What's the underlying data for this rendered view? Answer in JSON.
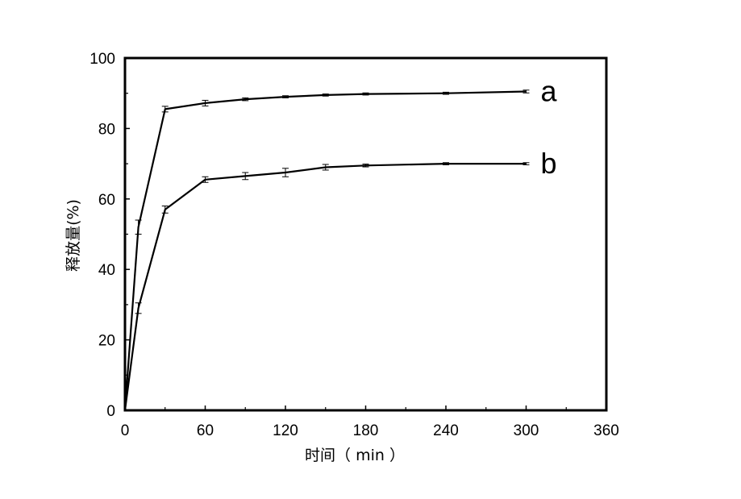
{
  "chart_data": {
    "type": "line",
    "title": "",
    "xlabel": "时间（ min ）",
    "ylabel": "释放量(%)",
    "xlim": [
      0,
      360
    ],
    "ylim": [
      0,
      100
    ],
    "x_ticks": [
      0,
      60,
      120,
      180,
      240,
      300,
      360
    ],
    "y_ticks": [
      0,
      20,
      40,
      60,
      80,
      100
    ],
    "grid": false,
    "legend": "none",
    "series": [
      {
        "name": "a",
        "color": "#000000",
        "points": [
          {
            "x": 0,
            "y": 0,
            "err": 0
          },
          {
            "x": 10,
            "y": 52,
            "err": 2
          },
          {
            "x": 30,
            "y": 85.5,
            "err": 0.8
          },
          {
            "x": 60,
            "y": 87.2,
            "err": 0.8
          },
          {
            "x": 90,
            "y": 88.3,
            "err": 0.4
          },
          {
            "x": 120,
            "y": 89,
            "err": 0.3
          },
          {
            "x": 150,
            "y": 89.5,
            "err": 0.3
          },
          {
            "x": 180,
            "y": 89.8,
            "err": 0.3
          },
          {
            "x": 240,
            "y": 90,
            "err": 0.3
          },
          {
            "x": 300,
            "y": 90.5,
            "err": 0.4
          }
        ]
      },
      {
        "name": "b",
        "color": "#000000",
        "points": [
          {
            "x": 0,
            "y": 0,
            "err": 0
          },
          {
            "x": 10,
            "y": 29,
            "err": 1.5
          },
          {
            "x": 30,
            "y": 57,
            "err": 1
          },
          {
            "x": 60,
            "y": 65.5,
            "err": 0.8
          },
          {
            "x": 90,
            "y": 66.5,
            "err": 1
          },
          {
            "x": 120,
            "y": 67.5,
            "err": 1.2
          },
          {
            "x": 150,
            "y": 69,
            "err": 0.8
          },
          {
            "x": 180,
            "y": 69.5,
            "err": 0.4
          },
          {
            "x": 240,
            "y": 70,
            "err": 0.3
          },
          {
            "x": 300,
            "y": 70,
            "err": 0.3
          }
        ]
      }
    ]
  }
}
